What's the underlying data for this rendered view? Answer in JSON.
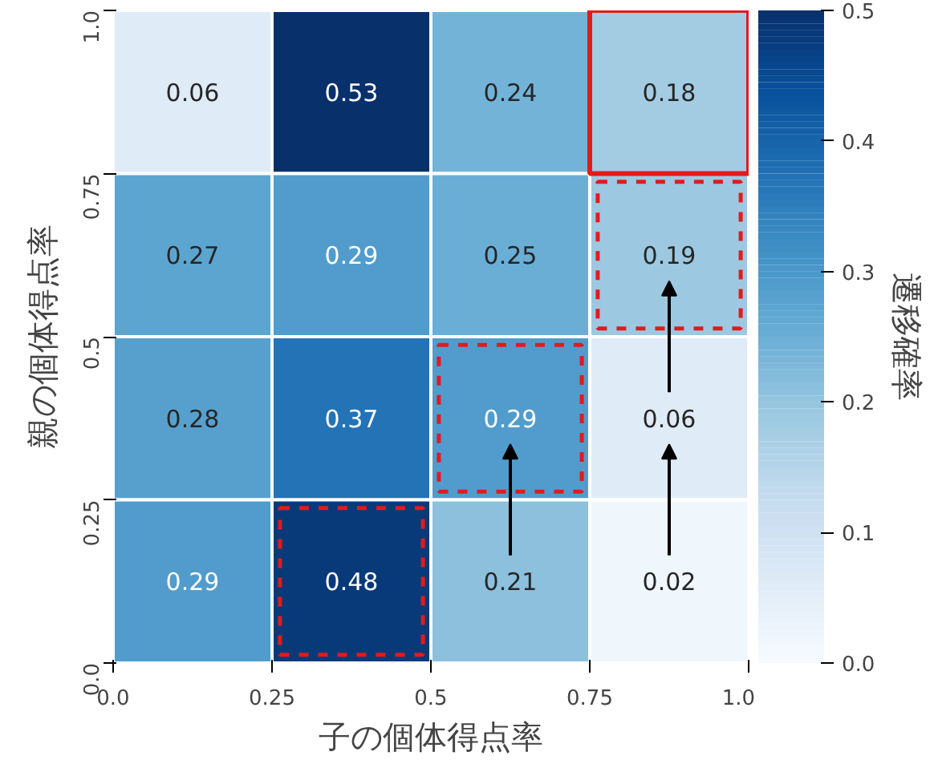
{
  "chart_data": {
    "type": "heatmap",
    "xlabel": "子の個体得点率",
    "ylabel": "親の個体得点率",
    "clabel": "遷移確率",
    "xlim": [
      0,
      1
    ],
    "xticks": [
      {
        "value": 0,
        "label": "0.0"
      },
      0.25,
      {
        "value": 0.5,
        "label": "0.5"
      },
      0.75,
      {
        "value": 1,
        "label": "1.0"
      }
    ],
    "ylim": [
      0,
      1
    ],
    "yticks": [
      {
        "value": 0,
        "label": "0.0"
      },
      0.25,
      {
        "value": 0.5,
        "label": "0.5"
      },
      0.75,
      {
        "value": 1,
        "label": "1.0"
      }
    ],
    "cells": [
      [
        0.06,
        0.53,
        0.24,
        0.18
      ],
      [
        0.27,
        0.29,
        0.25,
        0.19
      ],
      [
        0.28,
        0.37,
        0.29,
        0.06
      ],
      [
        0.29,
        0.48,
        0.21,
        0.02
      ]
    ],
    "clim": [
      0,
      0.5
    ],
    "cticks": [
      {
        "value": 0,
        "label": "0.0"
      },
      0.1,
      0.2,
      0.3,
      0.4,
      0.5
    ],
    "data_labels": true
  }
}
